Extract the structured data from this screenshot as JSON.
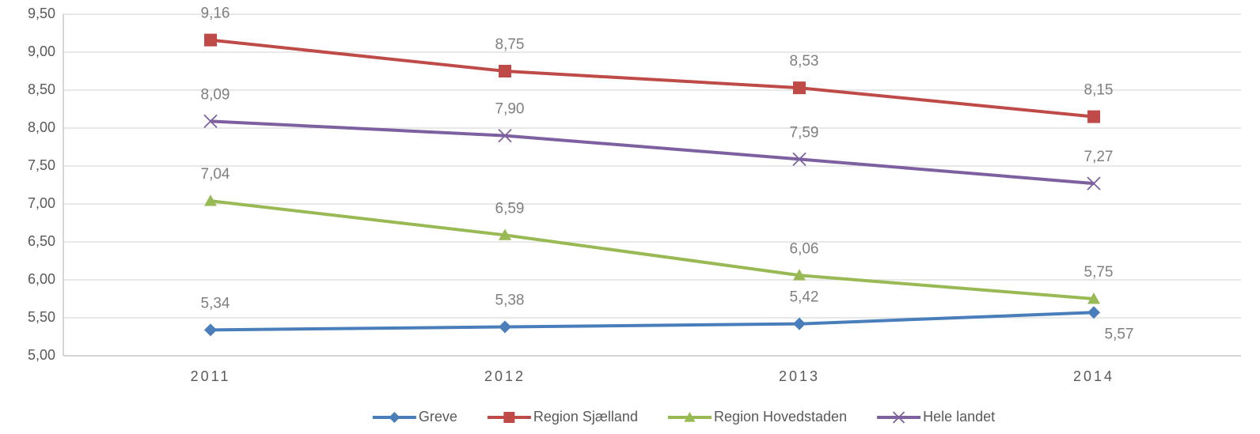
{
  "chart_data": {
    "type": "line",
    "categories": [
      "2011",
      "2012",
      "2013",
      "2014"
    ],
    "series": [
      {
        "name": "Greve",
        "color": "#4a7ebb",
        "marker": "diamond",
        "values": [
          5.34,
          5.38,
          5.42,
          5.57
        ],
        "value_labels": [
          "5,34",
          "5,38",
          "5,42",
          "5,57"
        ]
      },
      {
        "name": "Region Sjælland",
        "color": "#be4b48",
        "marker": "square",
        "values": [
          9.16,
          8.75,
          8.53,
          8.15
        ],
        "value_labels": [
          "9,16",
          "8,75",
          "8,53",
          "8,15"
        ]
      },
      {
        "name": "Region Hovedstaden",
        "color": "#98b954",
        "marker": "triangle",
        "values": [
          7.04,
          6.59,
          6.06,
          5.75
        ],
        "value_labels": [
          "7,04",
          "6,59",
          "6,06",
          "5,75"
        ]
      },
      {
        "name": "Hele landet",
        "color": "#7d60a0",
        "marker": "x",
        "values": [
          8.09,
          7.9,
          7.59,
          7.27
        ],
        "value_labels": [
          "8,09",
          "7,90",
          "7,59",
          "7,27"
        ]
      }
    ],
    "ylim": [
      5.0,
      9.5
    ],
    "yticks": [
      {
        "value": 5.0,
        "label": "5,00"
      },
      {
        "value": 5.5,
        "label": "5,50"
      },
      {
        "value": 6.0,
        "label": "6,00"
      },
      {
        "value": 6.5,
        "label": "6,50"
      },
      {
        "value": 7.0,
        "label": "7,00"
      },
      {
        "value": 7.5,
        "label": "7,50"
      },
      {
        "value": 8.0,
        "label": "8,00"
      },
      {
        "value": 8.5,
        "label": "8,50"
      },
      {
        "value": 9.0,
        "label": "9,00"
      },
      {
        "value": 9.5,
        "label": "9,50"
      }
    ],
    "grid": true,
    "legend": "bottom"
  }
}
